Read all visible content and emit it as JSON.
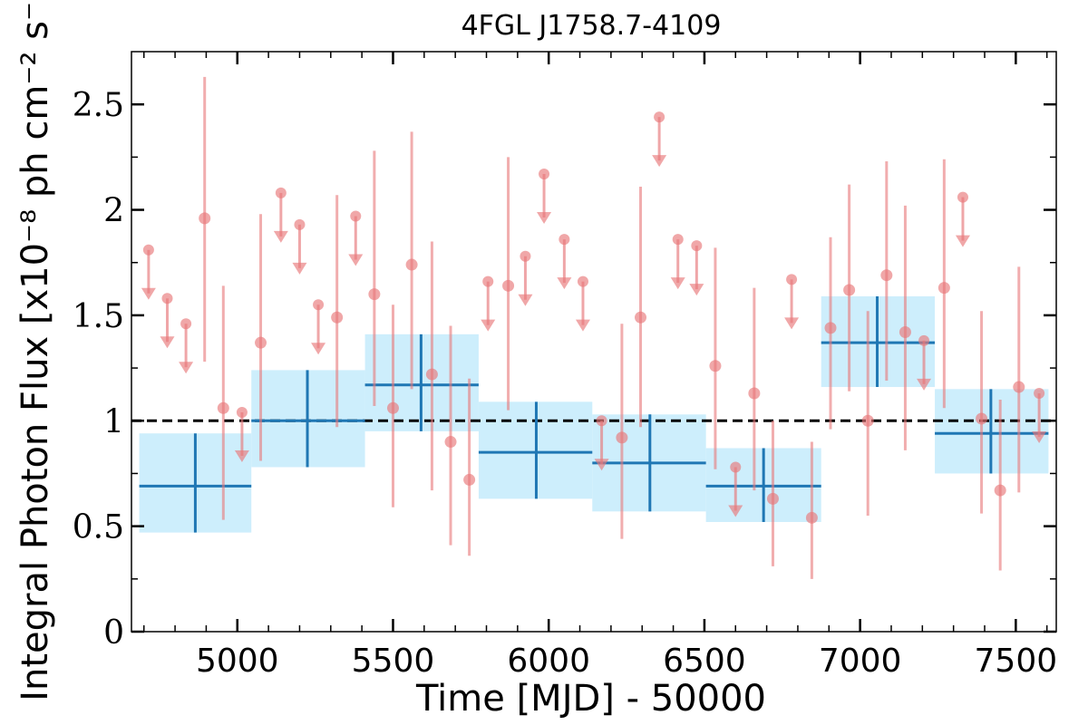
{
  "chart_data": {
    "type": "scatter",
    "title": "4FGL J1758.7-4109",
    "xlabel": "Time [MJD] - 50000",
    "ylabel": "Integral Photon Flux [x10⁻⁸ ph cm⁻² s⁻¹]",
    "xlim": [
      4660,
      7630
    ],
    "ylim": [
      0,
      2.75
    ],
    "x_ticks": [
      5000,
      5500,
      6000,
      6500,
      7000,
      7500
    ],
    "x_tick_labels": [
      "5000",
      "5500",
      "6000",
      "6500",
      "7000",
      "7500"
    ],
    "y_ticks": [
      0,
      0.5,
      1,
      1.5,
      2,
      2.5
    ],
    "y_tick_labels": [
      "0",
      "0.5",
      "1",
      "1.5",
      "2",
      "2.5"
    ],
    "reference_line": {
      "y": 1.0,
      "style": "dashed",
      "color": "#000000"
    },
    "colors": {
      "detections": "#e8787a",
      "upper_limits": "#e8787a",
      "binned": "#1f77b4",
      "binned_box": "#cdeefc"
    },
    "series": [
      {
        "kind": "detection",
        "points": [
          {
            "x": 4895,
            "y": 1.96,
            "ylo": 1.28,
            "yhi": 2.63
          },
          {
            "x": 4955,
            "y": 1.06,
            "ylo": 0.53,
            "yhi": 1.64
          },
          {
            "x": 5075,
            "y": 1.37,
            "ylo": 0.81,
            "yhi": 1.98
          },
          {
            "x": 5320,
            "y": 1.49,
            "ylo": 0.97,
            "yhi": 2.07
          },
          {
            "x": 5440,
            "y": 1.6,
            "ylo": 1.07,
            "yhi": 2.28
          },
          {
            "x": 5500,
            "y": 1.06,
            "ylo": 0.59,
            "yhi": 1.55
          },
          {
            "x": 5560,
            "y": 1.74,
            "ylo": 1.15,
            "yhi": 2.37
          },
          {
            "x": 5625,
            "y": 1.22,
            "ylo": 0.67,
            "yhi": 1.85
          },
          {
            "x": 5685,
            "y": 0.9,
            "ylo": 0.41,
            "yhi": 1.45
          },
          {
            "x": 5745,
            "y": 0.72,
            "ylo": 0.36,
            "yhi": 1.2
          },
          {
            "x": 5870,
            "y": 1.64,
            "ylo": 1.05,
            "yhi": 2.25
          },
          {
            "x": 6235,
            "y": 0.92,
            "ylo": 0.44,
            "yhi": 1.46
          },
          {
            "x": 6295,
            "y": 1.49,
            "ylo": 0.97,
            "yhi": 2.11
          },
          {
            "x": 6535,
            "y": 1.26,
            "ylo": 0.77,
            "yhi": 1.82
          },
          {
            "x": 6660,
            "y": 1.13,
            "ylo": 0.67,
            "yhi": 1.63
          },
          {
            "x": 6720,
            "y": 0.63,
            "ylo": 0.31,
            "yhi": 1.0
          },
          {
            "x": 6845,
            "y": 0.54,
            "ylo": 0.25,
            "yhi": 0.9
          },
          {
            "x": 6905,
            "y": 1.44,
            "ylo": 0.96,
            "yhi": 1.87
          },
          {
            "x": 6965,
            "y": 1.62,
            "ylo": 1.14,
            "yhi": 2.12
          },
          {
            "x": 7025,
            "y": 1.0,
            "ylo": 0.55,
            "yhi": 1.52
          },
          {
            "x": 7085,
            "y": 1.69,
            "ylo": 1.19,
            "yhi": 2.23
          },
          {
            "x": 7145,
            "y": 1.42,
            "ylo": 0.86,
            "yhi": 2.02
          },
          {
            "x": 7270,
            "y": 1.63,
            "ylo": 1.06,
            "yhi": 2.24
          },
          {
            "x": 7390,
            "y": 1.01,
            "ylo": 0.56,
            "yhi": 1.52
          },
          {
            "x": 7450,
            "y": 0.67,
            "ylo": 0.29,
            "yhi": 1.1
          },
          {
            "x": 7510,
            "y": 1.16,
            "ylo": 0.66,
            "yhi": 1.73
          }
        ]
      },
      {
        "kind": "upper_limit",
        "points": [
          {
            "x": 4715,
            "y": 1.81
          },
          {
            "x": 4775,
            "y": 1.58
          },
          {
            "x": 4835,
            "y": 1.46
          },
          {
            "x": 5015,
            "y": 1.04
          },
          {
            "x": 5140,
            "y": 2.08
          },
          {
            "x": 5200,
            "y": 1.93
          },
          {
            "x": 5260,
            "y": 1.55
          },
          {
            "x": 5380,
            "y": 1.97
          },
          {
            "x": 5805,
            "y": 1.66
          },
          {
            "x": 5925,
            "y": 1.78
          },
          {
            "x": 5985,
            "y": 2.17
          },
          {
            "x": 6050,
            "y": 1.86
          },
          {
            "x": 6110,
            "y": 1.66
          },
          {
            "x": 6170,
            "y": 1.0
          },
          {
            "x": 6355,
            "y": 2.44
          },
          {
            "x": 6415,
            "y": 1.86
          },
          {
            "x": 6475,
            "y": 1.83
          },
          {
            "x": 6600,
            "y": 0.78
          },
          {
            "x": 6780,
            "y": 1.67
          },
          {
            "x": 7205,
            "y": 1.38
          },
          {
            "x": 7330,
            "y": 2.06
          },
          {
            "x": 7575,
            "y": 1.13
          }
        ]
      },
      {
        "kind": "binned",
        "points": [
          {
            "x": 4865,
            "xlo": 4685,
            "xhi": 5045,
            "y": 0.69,
            "ylo": 0.47,
            "yhi": 0.94
          },
          {
            "x": 5225,
            "xlo": 5045,
            "xhi": 5410,
            "y": 1.0,
            "ylo": 0.78,
            "yhi": 1.24
          },
          {
            "x": 5590,
            "xlo": 5410,
            "xhi": 5775,
            "y": 1.17,
            "ylo": 0.95,
            "yhi": 1.41
          },
          {
            "x": 5960,
            "xlo": 5775,
            "xhi": 6140,
            "y": 0.85,
            "ylo": 0.63,
            "yhi": 1.09
          },
          {
            "x": 6325,
            "xlo": 6140,
            "xhi": 6505,
            "y": 0.8,
            "ylo": 0.57,
            "yhi": 1.03
          },
          {
            "x": 6690,
            "xlo": 6505,
            "xhi": 6875,
            "y": 0.69,
            "ylo": 0.52,
            "yhi": 0.87
          },
          {
            "x": 7055,
            "xlo": 6875,
            "xhi": 7240,
            "y": 1.37,
            "ylo": 1.16,
            "yhi": 1.59
          },
          {
            "x": 7420,
            "xlo": 7240,
            "xhi": 7605,
            "y": 0.94,
            "ylo": 0.75,
            "yhi": 1.15
          }
        ]
      }
    ]
  }
}
